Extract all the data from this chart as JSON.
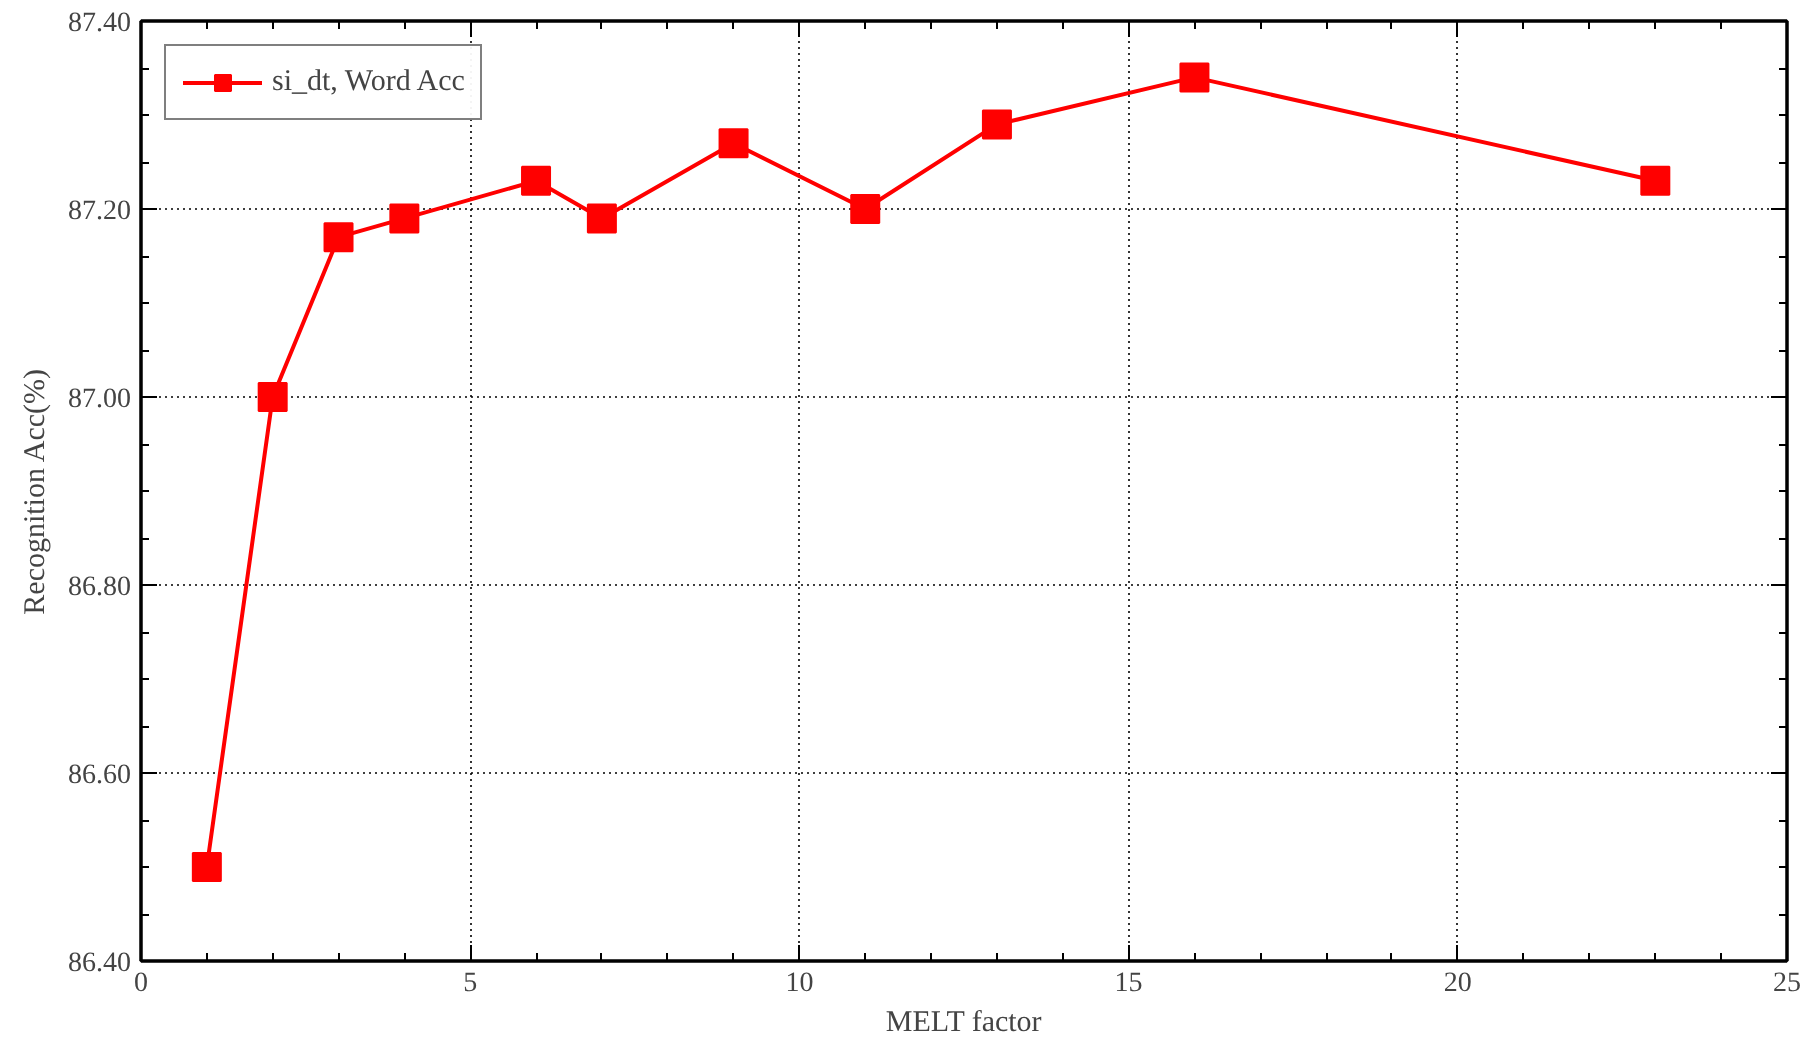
{
  "chart_data": {
    "type": "line",
    "xlabel": "MELT factor",
    "ylabel": "Recognition Acc(%)",
    "x": [
      1,
      2,
      3,
      4,
      6,
      7,
      9,
      11,
      13,
      16,
      23
    ],
    "series": [
      {
        "name": "si_dt, Word Acc",
        "color": "#ff0000",
        "values": [
          86.5,
          87.0,
          87.17,
          87.19,
          87.23,
          87.19,
          87.27,
          87.2,
          87.29,
          87.34,
          87.23
        ]
      }
    ],
    "xlim": [
      0,
      25
    ],
    "xticks": [
      0,
      5,
      10,
      15,
      20,
      25
    ],
    "ylim": [
      86.4,
      87.4
    ],
    "yticks": [
      {
        "value": 86.4,
        "label": "86.40"
      },
      {
        "value": 86.6,
        "label": "86.60"
      },
      {
        "value": 86.8,
        "label": "86.80"
      },
      {
        "value": 87.0,
        "label": "87.00"
      },
      {
        "value": 87.2,
        "label": "87.20"
      },
      {
        "value": 87.4,
        "label": "87.40"
      }
    ],
    "grid": true,
    "legend": "top left",
    "marker": "square",
    "line_style": "solid"
  }
}
